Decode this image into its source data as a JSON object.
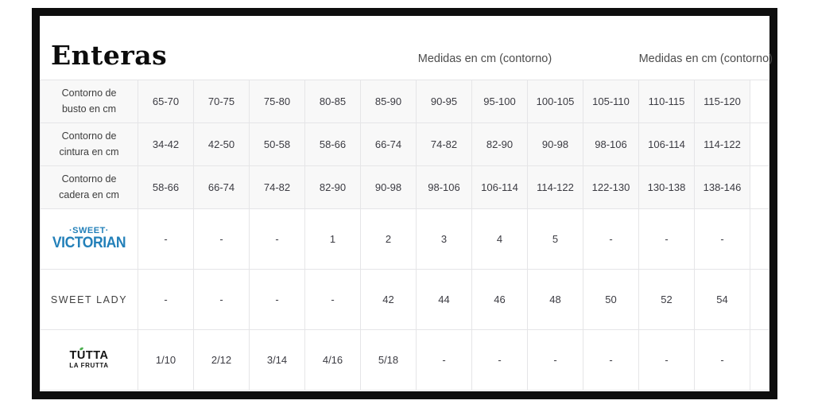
{
  "page": {
    "title": "Enteras",
    "header_note_left": "Medidas en cm (contorno)",
    "header_note_right": "Medidas en cm (contorno)"
  },
  "colors": {
    "frame": "#0e0e0e",
    "measure_row_bg": "#f8f8f8",
    "gridline": "#e5e5e7",
    "sweet_victorian_blue": "#2380b9",
    "tutta_green": "#4caf50",
    "text": "#3b3b42"
  },
  "table": {
    "measure_rows": [
      {
        "label": "Contorno de busto en cm",
        "values": [
          "65-70",
          "70-75",
          "75-80",
          "80-85",
          "85-90",
          "90-95",
          "95-100",
          "100-105",
          "105-110",
          "110-115",
          "115-120"
        ]
      },
      {
        "label": "Contorno de cintura en cm",
        "values": [
          "34-42",
          "42-50",
          "50-58",
          "58-66",
          "66-74",
          "74-82",
          "82-90",
          "90-98",
          "98-106",
          "106-114",
          "114-122"
        ]
      },
      {
        "label": "Contorno de cadera en cm",
        "values": [
          "58-66",
          "66-74",
          "74-82",
          "82-90",
          "90-98",
          "98-106",
          "106-114",
          "114-122",
          "122-130",
          "130-138",
          "138-146"
        ]
      }
    ],
    "brand_rows": [
      {
        "brand": "sweet-victorian",
        "logo": {
          "line1": "·SWEET·",
          "line2": "VICTORIAN"
        },
        "values": [
          "-",
          "-",
          "-",
          "1",
          "2",
          "3",
          "4",
          "5",
          "-",
          "-",
          "-"
        ]
      },
      {
        "brand": "sweet-lady",
        "logo": {
          "line1": "SWEET LADY"
        },
        "values": [
          "-",
          "-",
          "-",
          "-",
          "42",
          "44",
          "46",
          "48",
          "50",
          "52",
          "54"
        ]
      },
      {
        "brand": "tutta-la-frutta",
        "logo": {
          "line1": "TÚTTA",
          "line2": "LA FRUTTA"
        },
        "values": [
          "1/10",
          "2/12",
          "3/14",
          "4/16",
          "5/18",
          "-",
          "-",
          "-",
          "-",
          "-",
          "-"
        ]
      }
    ]
  }
}
